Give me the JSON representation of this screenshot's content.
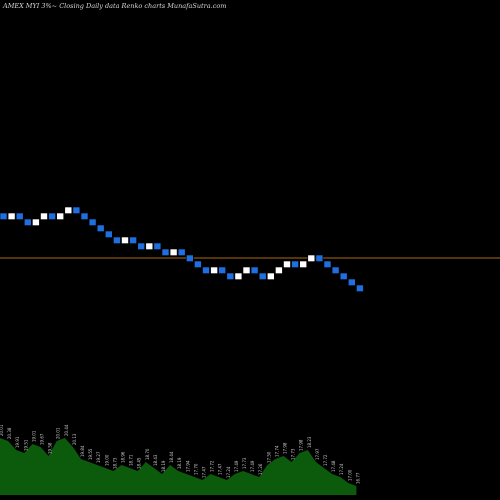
{
  "header": {
    "title": "AMEX  MYI  3%~  Closing Daily data  Renko  charts MunafaSutra.com"
  },
  "colors": {
    "background": "#000000",
    "up_brick": "#ffffff",
    "down_brick": "#1f6fe0",
    "reference_line": "#b06a10",
    "volume_fill": "#0c5a0c"
  },
  "chart_data": {
    "type": "renko",
    "brick_direction": [
      "down",
      "up",
      "down",
      "down",
      "up",
      "up",
      "down",
      "up",
      "up",
      "down",
      "down",
      "down",
      "down",
      "down",
      "down",
      "up",
      "down",
      "down",
      "up",
      "down",
      "down",
      "up",
      "down",
      "down",
      "down",
      "down",
      "up",
      "down",
      "down",
      "up",
      "up",
      "down",
      "down",
      "up",
      "up",
      "up",
      "down",
      "up",
      "up",
      "down",
      "down",
      "down",
      "down",
      "down",
      "down"
    ],
    "reference_line": true,
    "volume_labels": [
      "20.01",
      "20.38",
      "19.91",
      "19.51",
      "19.01",
      "19.67",
      "19.58",
      "20.01",
      "20.44",
      "20.13",
      "19.84",
      "19.55",
      "19.27",
      "19.00",
      "18.73",
      "18.96",
      "18.71",
      "18.45",
      "18.70",
      "18.43",
      "18.19",
      "18.44",
      "18.19",
      "17.94",
      "17.70",
      "17.47",
      "17.72",
      "17.47",
      "17.24",
      "17.49",
      "17.73",
      "17.49",
      "17.26",
      "17.50",
      "17.74",
      "17.98",
      "17.73",
      "17.98",
      "18.23",
      "17.97",
      "17.72",
      "17.48",
      "17.24",
      "17.00",
      "16.77"
    ],
    "volume_values": [
      0.95,
      0.9,
      0.75,
      0.7,
      0.85,
      0.8,
      0.65,
      0.9,
      0.95,
      0.8,
      0.6,
      0.55,
      0.5,
      0.45,
      0.4,
      0.5,
      0.45,
      0.4,
      0.55,
      0.45,
      0.35,
      0.5,
      0.4,
      0.35,
      0.3,
      0.25,
      0.35,
      0.3,
      0.25,
      0.35,
      0.4,
      0.35,
      0.3,
      0.5,
      0.6,
      0.65,
      0.55,
      0.7,
      0.75,
      0.55,
      0.45,
      0.35,
      0.3,
      0.2,
      0.15
    ]
  }
}
